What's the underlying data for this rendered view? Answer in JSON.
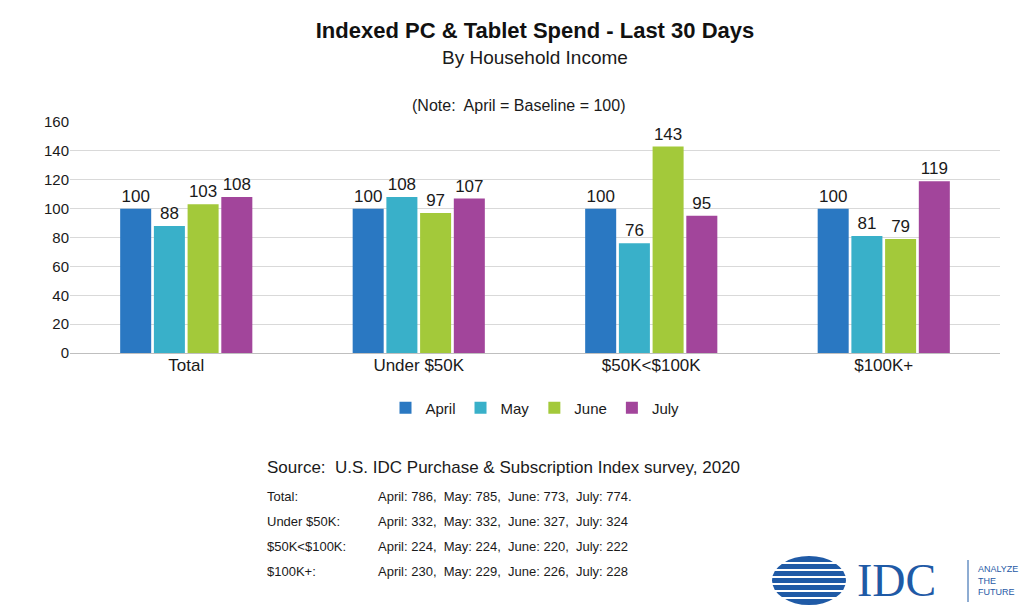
{
  "chart_data": {
    "type": "bar",
    "title": "Indexed PC & Tablet Spend - Last 30 Days",
    "subtitle": "By Household Income",
    "note": "(Note:  April = Baseline = 100)",
    "categories": [
      "Total",
      "Under $50K",
      "$50K<$100K",
      "$100K+"
    ],
    "series": [
      {
        "name": "April",
        "color": "#2a78c2",
        "values": [
          100,
          100,
          100,
          100
        ]
      },
      {
        "name": "May",
        "color": "#39b0c9",
        "values": [
          88,
          108,
          76,
          81
        ]
      },
      {
        "name": "June",
        "color": "#a3c93a",
        "values": [
          103,
          97,
          143,
          79
        ]
      },
      {
        "name": "July",
        "color": "#a2459b",
        "values": [
          108,
          107,
          95,
          119
        ]
      }
    ],
    "ylim": [
      0,
      160
    ],
    "yticks": [
      0,
      20,
      40,
      60,
      80,
      100,
      120,
      140,
      160
    ],
    "grid": true,
    "legend": "bottom",
    "data_labels": true,
    "source": "Source:  U.S. IDC Purchase & Subscription Index survey, 2020",
    "sample_sizes": [
      {
        "label": "Total:",
        "text": "April: 786,  May: 785,  June: 773,  July: 774."
      },
      {
        "label": "Under $50K:",
        "text": "April: 332,  May: 332,  June: 327,  July: 324"
      },
      {
        "label": "$50K<$100K:",
        "text": "April: 224,  May: 224,  June: 220,  July: 222"
      },
      {
        "label": "$100K+:",
        "text": "April: 230,  May: 229,  June: 226,  July: 228"
      }
    ],
    "logo": {
      "text": "IDC",
      "tagline": [
        "ANALYZE",
        "THE",
        "FUTURE"
      ]
    }
  }
}
